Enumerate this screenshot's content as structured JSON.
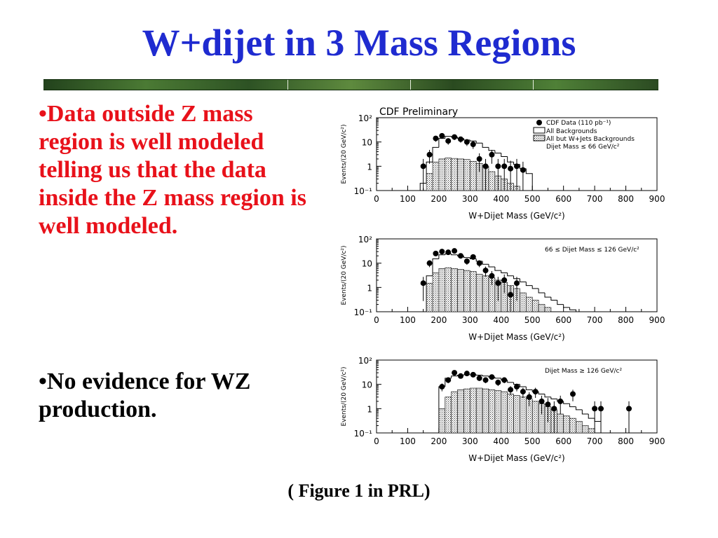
{
  "slide": {
    "title": "W+dijet in 3 Mass Regions",
    "bullets": [
      "•Data outside Z mass region is well modeled telling us that the data inside the Z mass region is well modeled.",
      "•No evidence for WZ production."
    ],
    "caption": "( Figure 1 in PRL)"
  },
  "colors": {
    "title": "#1f2bd0",
    "bullet1": "#e8111a",
    "bullet2": "#000000",
    "divider": "#3b6b2c"
  },
  "chart_data": [
    {
      "type": "bar",
      "title": "CDF Preliminary",
      "xlabel": "W+Dijet Mass (GeV/c²)",
      "ylabel": "Events/(20 GeV/c²)",
      "xlim": [
        0,
        900
      ],
      "ylim": [
        0.1,
        100
      ],
      "log_y": true,
      "x_ticks": [
        "0",
        "100",
        "200",
        "300",
        "400",
        "500",
        "600",
        "700",
        "800",
        "900"
      ],
      "y_ticks": [
        "10⁻¹",
        "1",
        "10",
        "10²"
      ],
      "legend": [
        "CDF Data (110 pb⁻¹)",
        "All Backgrounds",
        "All but W+Jets Backgrounds",
        "Dijet Mass ≤ 66 GeV/c²"
      ],
      "bin_edges": [
        140,
        160,
        180,
        200,
        220,
        240,
        260,
        280,
        300,
        320,
        340,
        360,
        380,
        400,
        420,
        440,
        460,
        480,
        500
      ],
      "series": [
        {
          "name": "All Backgrounds",
          "values": [
            0.2,
            1.5,
            6,
            14,
            17,
            16,
            14,
            12,
            11,
            9,
            6,
            4.5,
            3.5,
            2.5,
            1.5,
            1.2,
            0.8,
            0.5
          ]
        },
        {
          "name": "All but W+Jets Backgrounds",
          "values": [
            0.1,
            0.5,
            1.5,
            2,
            2.2,
            2.1,
            2,
            1.9,
            1.6,
            1.3,
            1,
            0.6,
            0.4,
            0.3,
            0.2,
            0.15,
            0.1,
            0.1
          ]
        },
        {
          "name": "CDF Data (110 pb⁻¹)",
          "x": [
            150,
            170,
            190,
            210,
            230,
            250,
            270,
            290,
            310,
            330,
            350,
            370,
            390,
            410,
            430,
            450,
            470
          ],
          "y": [
            1,
            3,
            14,
            18,
            11,
            16,
            13,
            10,
            8,
            2,
            1,
            3,
            1,
            1,
            0.8,
            1,
            0.7
          ]
        }
      ]
    },
    {
      "type": "bar",
      "xlabel": "W+Dijet Mass (GeV/c²)",
      "ylabel": "Events/(20 GeV/c²)",
      "xlim": [
        0,
        900
      ],
      "ylim": [
        0.1,
        100
      ],
      "log_y": true,
      "x_ticks": [
        "0",
        "100",
        "200",
        "300",
        "400",
        "500",
        "600",
        "700",
        "800",
        "900"
      ],
      "y_ticks": [
        "10⁻¹",
        "1",
        "10",
        "10²"
      ],
      "legend": [
        "66 ≤ Dijet Mass ≤ 126 GeV/c²"
      ],
      "bin_edges": [
        140,
        160,
        180,
        200,
        220,
        240,
        260,
        280,
        300,
        320,
        340,
        360,
        380,
        400,
        420,
        440,
        460,
        480,
        500,
        520,
        540,
        560,
        580,
        600,
        620,
        640
      ],
      "series": [
        {
          "name": "All Backgrounds",
          "values": [
            0.1,
            3,
            15,
            22,
            24,
            22,
            20,
            17,
            15,
            12,
            9,
            7,
            5,
            4,
            3,
            2.3,
            1.7,
            1.2,
            0.9,
            0.6,
            0.4,
            0.3,
            0.2,
            0.15,
            0.12
          ]
        },
        {
          "name": "All but W+Jets Backgrounds",
          "values": [
            0.1,
            1.5,
            4,
            6,
            6.5,
            6,
            5.5,
            5,
            4.5,
            3.5,
            3,
            2.5,
            2,
            1.6,
            1.2,
            0.9,
            0.6,
            0.4,
            0.3,
            0.2,
            0.15,
            0.1,
            0.1,
            0.1,
            0.1
          ]
        },
        {
          "name": "CDF Data (110 pb⁻¹)",
          "x": [
            150,
            170,
            190,
            210,
            230,
            250,
            270,
            290,
            310,
            330,
            350,
            370,
            390,
            410,
            430,
            450
          ],
          "y": [
            1.5,
            10,
            25,
            30,
            28,
            32,
            20,
            12,
            18,
            10,
            5,
            3,
            1.5,
            2,
            0.5,
            1.5
          ]
        }
      ]
    },
    {
      "type": "bar",
      "xlabel": "W+Dijet Mass (GeV/c²)",
      "ylabel": "Events/(20 GeV/c²)",
      "xlim": [
        0,
        900
      ],
      "ylim": [
        0.1,
        100
      ],
      "log_y": true,
      "x_ticks": [
        "0",
        "100",
        "200",
        "300",
        "400",
        "500",
        "600",
        "700",
        "800",
        "900"
      ],
      "y_ticks": [
        "10⁻¹",
        "1",
        "10",
        "10²"
      ],
      "legend": [
        "Dijet Mass ≥ 126 GeV/c²"
      ],
      "bin_edges": [
        200,
        220,
        240,
        260,
        280,
        300,
        320,
        340,
        360,
        380,
        400,
        420,
        440,
        460,
        480,
        500,
        520,
        540,
        560,
        580,
        600,
        620,
        640,
        660,
        680,
        700,
        720
      ],
      "series": [
        {
          "name": "All Backgrounds",
          "values": [
            8,
            18,
            22,
            24,
            25,
            25,
            24,
            22,
            20,
            18,
            15,
            12,
            10,
            8,
            6,
            5,
            4,
            3,
            2.5,
            2,
            1.6,
            1.2,
            0.9,
            0.6,
            0.4,
            0.3
          ]
        },
        {
          "name": "All but W+Jets Backgrounds",
          "values": [
            1,
            3,
            5,
            6,
            6.5,
            7,
            7,
            6.5,
            6,
            5.5,
            5,
            4,
            3.5,
            3,
            2.5,
            2,
            1.6,
            1.2,
            0.9,
            0.6,
            0.5,
            0.4,
            0.3,
            0.2,
            0.15,
            0.1
          ]
        },
        {
          "name": "CDF Data (110 pb⁻¹)",
          "x": [
            210,
            230,
            250,
            270,
            290,
            310,
            330,
            350,
            370,
            390,
            410,
            430,
            450,
            470,
            490,
            510,
            530,
            550,
            570,
            590,
            630,
            700,
            720,
            810
          ],
          "y": [
            8,
            15,
            30,
            22,
            28,
            25,
            18,
            15,
            20,
            12,
            15,
            6,
            8,
            5,
            3,
            5,
            2,
            1.5,
            1,
            2,
            4,
            1,
            1,
            1
          ]
        }
      ]
    }
  ]
}
